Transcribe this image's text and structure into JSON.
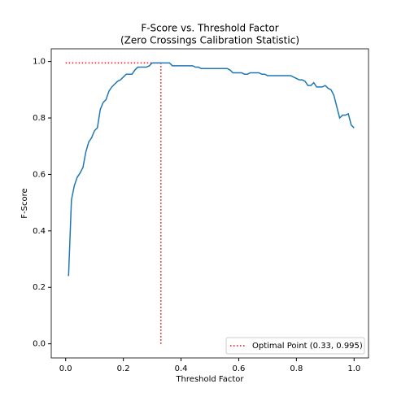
{
  "chart_data": {
    "type": "line",
    "title": "F-Score vs. Threshold Factor",
    "subtitle": "(Zero Crossings Calibration Statistic)",
    "x_label": "Threshold Factor",
    "y_label": "F-Score",
    "x": [
      0.01,
      0.02,
      0.03,
      0.04,
      0.05,
      0.06,
      0.07,
      0.08,
      0.09,
      0.1,
      0.11,
      0.12,
      0.13,
      0.14,
      0.15,
      0.16,
      0.17,
      0.18,
      0.19,
      0.2,
      0.21,
      0.22,
      0.23,
      0.24,
      0.25,
      0.26,
      0.27,
      0.28,
      0.29,
      0.3,
      0.31,
      0.32,
      0.33,
      0.34,
      0.35,
      0.36,
      0.37,
      0.38,
      0.39,
      0.4,
      0.41,
      0.42,
      0.43,
      0.44,
      0.45,
      0.46,
      0.47,
      0.48,
      0.49,
      0.5,
      0.51,
      0.52,
      0.53,
      0.54,
      0.55,
      0.56,
      0.57,
      0.58,
      0.59,
      0.6,
      0.61,
      0.62,
      0.63,
      0.64,
      0.65,
      0.66,
      0.67,
      0.68,
      0.69,
      0.7,
      0.71,
      0.72,
      0.73,
      0.74,
      0.75,
      0.76,
      0.77,
      0.78,
      0.79,
      0.8,
      0.81,
      0.82,
      0.83,
      0.84,
      0.85,
      0.86,
      0.87,
      0.88,
      0.89,
      0.9,
      0.91,
      0.92,
      0.93,
      0.94,
      0.95,
      0.96,
      0.97,
      0.98,
      0.99,
      1.0
    ],
    "series": [
      {
        "color": "#1f77b4",
        "values": [
          0.24,
          0.51,
          0.56,
          0.59,
          0.605,
          0.625,
          0.68,
          0.715,
          0.73,
          0.755,
          0.765,
          0.83,
          0.855,
          0.865,
          0.895,
          0.91,
          0.92,
          0.93,
          0.935,
          0.945,
          0.955,
          0.955,
          0.955,
          0.97,
          0.98,
          0.98,
          0.98,
          0.98,
          0.985,
          0.995,
          0.995,
          0.995,
          0.995,
          0.995,
          0.995,
          0.995,
          0.985,
          0.985,
          0.985,
          0.985,
          0.985,
          0.985,
          0.985,
          0.985,
          0.98,
          0.98,
          0.975,
          0.975,
          0.975,
          0.975,
          0.975,
          0.975,
          0.975,
          0.975,
          0.975,
          0.975,
          0.97,
          0.96,
          0.96,
          0.96,
          0.96,
          0.955,
          0.955,
          0.96,
          0.96,
          0.96,
          0.96,
          0.955,
          0.955,
          0.95,
          0.95,
          0.95,
          0.95,
          0.95,
          0.95,
          0.95,
          0.95,
          0.95,
          0.945,
          0.94,
          0.935,
          0.935,
          0.93,
          0.915,
          0.915,
          0.925,
          0.91,
          0.91,
          0.91,
          0.915,
          0.905,
          0.9,
          0.88,
          0.84,
          0.8,
          0.81,
          0.81,
          0.815,
          0.775,
          0.765
        ]
      }
    ],
    "optimal": {
      "name": "Optimal Point (0.33, 0.995)",
      "color": "red",
      "x": 0.33,
      "y": 0.995
    },
    "legend": "lower right",
    "xlim": [
      -0.05,
      1.05
    ],
    "ylim": [
      -0.05,
      1.045
    ],
    "xticks": [
      {
        "value": 0,
        "label": "0.0"
      },
      0.2,
      0.4,
      0.6,
      0.8,
      {
        "value": 1,
        "label": "1.0"
      }
    ],
    "yticks": [
      {
        "value": 0,
        "label": "0.0"
      },
      0.2,
      0.4,
      0.6,
      0.8,
      {
        "value": 1,
        "label": "1.0"
      }
    ]
  }
}
